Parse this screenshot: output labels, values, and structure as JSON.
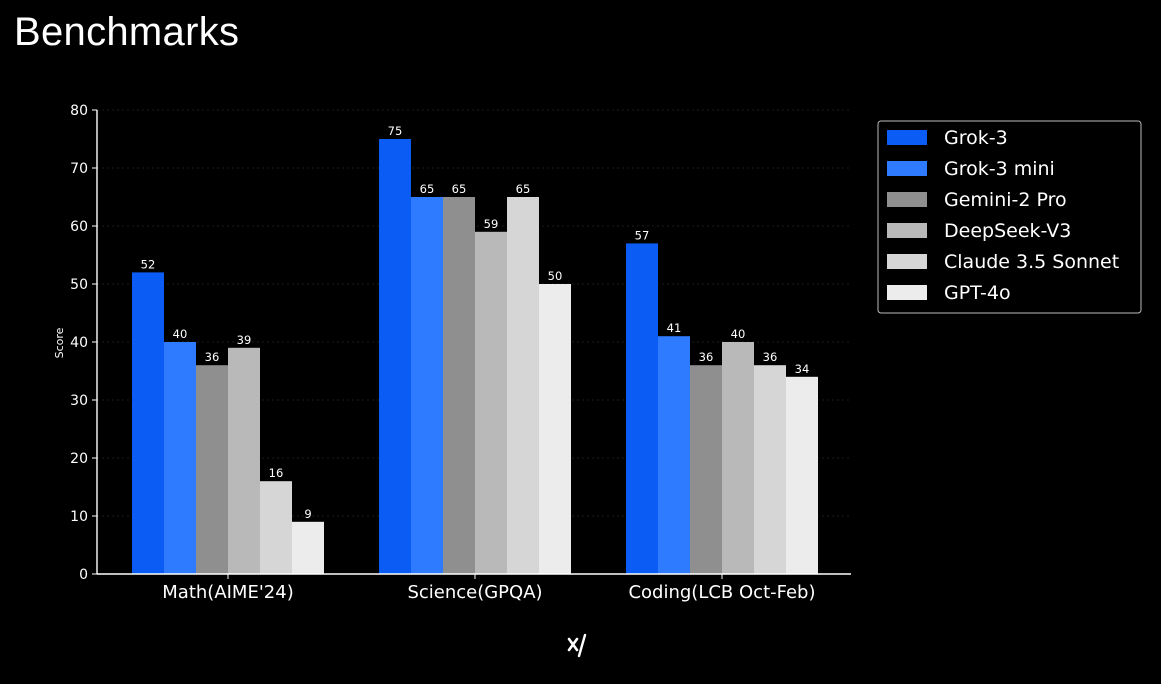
{
  "page": {
    "title": "Benchmarks",
    "logo": "xAI"
  },
  "chart_data": {
    "type": "bar",
    "title": "Benchmarks",
    "xlabel": "",
    "ylabel": "Score",
    "ylim": [
      0,
      80
    ],
    "yticks": [
      "0",
      "10",
      "20",
      "30",
      "40",
      "50",
      "60",
      "70",
      "80"
    ],
    "categories": [
      "Math(AIME'24)",
      "Science(GPQA)",
      "Coding(LCB Oct-Feb)"
    ],
    "series": [
      {
        "name": "Grok-3",
        "values": [
          52,
          75,
          57
        ],
        "color": "#0a5cf5"
      },
      {
        "name": "Grok-3 mini",
        "values": [
          40,
          65,
          41
        ],
        "color": "#2f7bff"
      },
      {
        "name": "Gemini-2 Pro",
        "values": [
          36,
          65,
          36
        ],
        "color": "#8f8f8f"
      },
      {
        "name": "DeepSeek-V3",
        "values": [
          39,
          59,
          40
        ],
        "color": "#b9b9b9"
      },
      {
        "name": "Claude 3.5 Sonnet",
        "values": [
          16,
          65,
          36
        ],
        "color": "#d6d6d6"
      },
      {
        "name": "GPT-4o",
        "values": [
          9,
          50,
          34
        ],
        "color": "#ececec"
      }
    ],
    "grid": true,
    "legend_position": "top-right"
  }
}
